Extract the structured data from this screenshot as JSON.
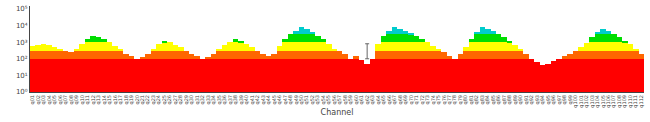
{
  "chart_data": {
    "type": "bar",
    "xlabel": "Channel",
    "stacked": true,
    "log": "y",
    "grid": false,
    "categories": [
      "q01",
      "q02",
      "q03",
      "q04",
      "q05",
      "q06",
      "q07",
      "q08",
      "q09",
      "q10",
      "q11",
      "q12",
      "q13",
      "q14",
      "q15",
      "q16",
      "q17",
      "q18",
      "q19",
      "q20",
      "q21",
      "q22",
      "q23",
      "q24",
      "q25",
      "q26",
      "q27",
      "q28",
      "q29",
      "q30",
      "q31",
      "q32",
      "q33",
      "q34",
      "q35",
      "q36",
      "q37",
      "q38",
      "q39",
      "q40",
      "q41",
      "q42",
      "q43",
      "q44",
      "q45",
      "q46",
      "q47",
      "q48",
      "q49",
      "q50",
      "q51",
      "q52",
      "q53",
      "q54",
      "q55",
      "q56",
      "q57",
      "q58",
      "q59",
      "q60",
      "q61",
      "q62",
      "q63",
      "q64",
      "q65",
      "q66",
      "q67",
      "q68",
      "q69",
      "q70",
      "q71",
      "q72",
      "q73",
      "q74",
      "q75",
      "q76",
      "q77",
      "q78",
      "q79",
      "q80",
      "q81",
      "q82",
      "q83",
      "q84",
      "q85",
      "q86",
      "q87",
      "q88",
      "q89",
      "q90",
      "q91",
      "q92",
      "q93",
      "q94",
      "q95",
      "q96",
      "q97",
      "q98",
      "q99",
      "q100",
      "q101",
      "q102",
      "q103",
      "q104",
      "q105",
      "q106",
      "q107",
      "q108",
      "q109",
      "q110",
      "q111",
      "q112"
    ],
    "series": [
      {
        "color": "#FF0000",
        "values": [
          99,
          99,
          99,
          99,
          99,
          99,
          99,
          99,
          99,
          99,
          99,
          99,
          99,
          99,
          99,
          99,
          99,
          99,
          99,
          99,
          99,
          99,
          99,
          99,
          99,
          99,
          99,
          99,
          99,
          99,
          99,
          99,
          99,
          99,
          99,
          99,
          99,
          99,
          99,
          99,
          99,
          99,
          99,
          99,
          99,
          99,
          99,
          99,
          99,
          99,
          99,
          99,
          99,
          99,
          99,
          99,
          99,
          99,
          99,
          99,
          79,
          49,
          99,
          99,
          99,
          99,
          99,
          99,
          99,
          99,
          99,
          99,
          99,
          99,
          99,
          99,
          99,
          99,
          99,
          99,
          99,
          99,
          99,
          99,
          99,
          99,
          99,
          99,
          99,
          99,
          99,
          99,
          59,
          39,
          49,
          69,
          99,
          99,
          99,
          99,
          99,
          99,
          99,
          99,
          99,
          99,
          99,
          99,
          99,
          99,
          99,
          99
        ]
      },
      {
        "color": "#FF6600",
        "values": [
          200,
          200,
          200,
          200,
          200,
          200,
          200,
          150,
          200,
          200,
          200,
          200,
          200,
          200,
          200,
          200,
          200,
          100,
          50,
          null,
          20,
          100,
          200,
          200,
          200,
          200,
          200,
          200,
          200,
          100,
          50,
          null,
          20,
          100,
          200,
          200,
          200,
          200,
          200,
          200,
          200,
          200,
          100,
          50,
          100,
          200,
          200,
          200,
          200,
          200,
          200,
          200,
          200,
          200,
          200,
          200,
          200,
          100,
          null,
          50,
          null,
          null,
          null,
          200,
          200,
          200,
          200,
          200,
          200,
          200,
          200,
          200,
          200,
          200,
          200,
          150,
          50,
          null,
          100,
          200,
          200,
          200,
          200,
          200,
          200,
          200,
          200,
          200,
          200,
          200,
          100,
          null,
          null,
          null,
          null,
          null,
          null,
          50,
          100,
          200,
          200,
          200,
          200,
          200,
          200,
          200,
          200,
          200,
          200,
          200,
          200,
          100
        ]
      },
      {
        "color": "#FFFF00",
        "values": [
          300,
          400,
          500,
          400,
          200,
          100,
          null,
          null,
          100,
          500,
          700,
          700,
          700,
          700,
          700,
          300,
          100,
          null,
          null,
          null,
          null,
          null,
          100,
          500,
          700,
          700,
          400,
          200,
          null,
          null,
          null,
          null,
          null,
          null,
          100,
          400,
          700,
          700,
          700,
          500,
          200,
          null,
          null,
          null,
          null,
          300,
          700,
          700,
          700,
          700,
          700,
          700,
          700,
          700,
          500,
          100,
          null,
          null,
          null,
          null,
          null,
          null,
          null,
          500,
          700,
          700,
          700,
          700,
          700,
          700,
          700,
          700,
          700,
          300,
          100,
          null,
          null,
          null,
          null,
          200,
          700,
          700,
          700,
          700,
          700,
          700,
          700,
          700,
          400,
          100,
          null,
          null,
          null,
          null,
          null,
          null,
          null,
          null,
          null,
          null,
          200,
          600,
          700,
          700,
          700,
          700,
          700,
          700,
          700,
          500,
          100,
          null
        ]
      },
      {
        "color": "#00DD00",
        "values": [
          null,
          null,
          null,
          null,
          null,
          null,
          null,
          null,
          null,
          null,
          500,
          1500,
          1000,
          500,
          null,
          null,
          null,
          null,
          null,
          null,
          null,
          null,
          null,
          null,
          200,
          null,
          null,
          null,
          null,
          null,
          null,
          null,
          null,
          null,
          null,
          null,
          null,
          500,
          200,
          null,
          null,
          null,
          null,
          null,
          null,
          null,
          500,
          2000,
          2000,
          2000,
          2000,
          2000,
          1500,
          500,
          null,
          null,
          null,
          null,
          null,
          null,
          null,
          null,
          null,
          null,
          1500,
          2000,
          2000,
          2000,
          2000,
          2000,
          1500,
          500,
          null,
          null,
          null,
          null,
          null,
          null,
          null,
          null,
          500,
          2000,
          2000,
          2000,
          2000,
          2000,
          1000,
          200,
          null,
          null,
          null,
          null,
          null,
          null,
          null,
          null,
          null,
          null,
          null,
          null,
          null,
          null,
          1000,
          2000,
          2000,
          2000,
          2000,
          1000,
          200,
          null,
          null,
          null
        ]
      },
      {
        "color": "#00CCCC",
        "values": [
          null,
          null,
          null,
          null,
          null,
          null,
          null,
          null,
          null,
          null,
          null,
          null,
          null,
          null,
          null,
          null,
          null,
          null,
          null,
          null,
          null,
          null,
          null,
          null,
          null,
          null,
          null,
          null,
          null,
          null,
          null,
          null,
          null,
          null,
          null,
          null,
          null,
          null,
          null,
          null,
          null,
          null,
          null,
          null,
          null,
          null,
          null,
          null,
          2000,
          5000,
          3000,
          1000,
          null,
          null,
          null,
          null,
          null,
          null,
          null,
          null,
          null,
          null,
          null,
          null,
          null,
          2000,
          5000,
          3500,
          2000,
          500,
          null,
          null,
          null,
          null,
          null,
          null,
          null,
          null,
          null,
          null,
          null,
          1000,
          5000,
          3000,
          1500,
          null,
          null,
          null,
          null,
          null,
          null,
          null,
          null,
          null,
          null,
          null,
          null,
          null,
          null,
          null,
          null,
          null,
          null,
          1000,
          3000,
          2000,
          null,
          null,
          null,
          null,
          null,
          null
        ]
      }
    ],
    "errorbar": {
      "category": "q62",
      "value": 200,
      "minus": 100,
      "plus": 600,
      "color": "#666666"
    },
    "ylim": [
      1,
      150000
    ],
    "yticks": [
      {
        "value": 1,
        "label": "10⁰"
      },
      {
        "value": 10,
        "label": "10¹"
      },
      {
        "value": 100,
        "label": "10²"
      },
      {
        "value": 1000,
        "label": "10³"
      },
      {
        "value": 10000,
        "label": "10⁴"
      },
      {
        "value": 100000,
        "label": "10⁵"
      }
    ]
  }
}
